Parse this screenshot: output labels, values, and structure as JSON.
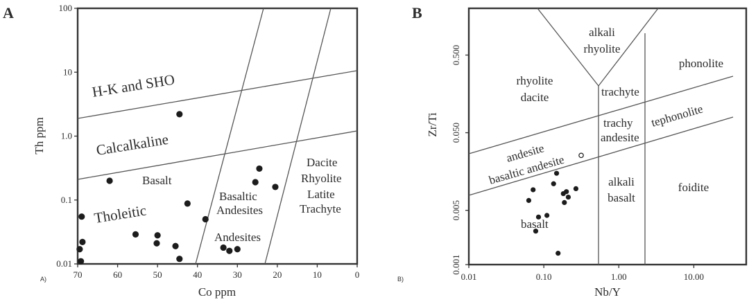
{
  "chart_data": [
    {
      "panel": "A",
      "sub_label": "A)",
      "type": "scatter",
      "xlabel": "Co ppm",
      "ylabel": "Th ppm",
      "x_reversed": true,
      "xlim": [
        70,
        0
      ],
      "ylim": [
        0.01,
        100
      ],
      "y_scale": "log",
      "x_ticks": [
        "70",
        "60",
        "50",
        "40",
        "30",
        "20",
        "10",
        "0"
      ],
      "y_ticks": [
        "0.01",
        "0.1",
        "1.0",
        "10",
        "100"
      ],
      "fields": [
        "H-K and SHO",
        "Calcalkaline",
        "Basalt",
        "Tholeitic",
        "Basaltic",
        "Andesites",
        "Andesites",
        "Dacite",
        "Rhyolite",
        "Latite",
        "Trachyte"
      ],
      "points": [
        {
          "x": 44.5,
          "y": 2.2
        },
        {
          "x": 62,
          "y": 0.2
        },
        {
          "x": 69,
          "y": 0.055
        },
        {
          "x": 68.8,
          "y": 0.022
        },
        {
          "x": 69.5,
          "y": 0.017
        },
        {
          "x": 69.2,
          "y": 0.011
        },
        {
          "x": 55.5,
          "y": 0.029
        },
        {
          "x": 50,
          "y": 0.028
        },
        {
          "x": 50.2,
          "y": 0.021
        },
        {
          "x": 45.5,
          "y": 0.019
        },
        {
          "x": 44.5,
          "y": 0.012
        },
        {
          "x": 42.5,
          "y": 0.088
        },
        {
          "x": 38,
          "y": 0.05
        },
        {
          "x": 33.5,
          "y": 0.018
        },
        {
          "x": 32,
          "y": 0.016
        },
        {
          "x": 30,
          "y": 0.017
        },
        {
          "x": 24.5,
          "y": 0.31
        },
        {
          "x": 25.5,
          "y": 0.19
        },
        {
          "x": 20.5,
          "y": 0.16
        }
      ]
    },
    {
      "panel": "B",
      "sub_label": "B)",
      "type": "scatter",
      "xlabel": "Nb/Y",
      "ylabel": "Zr/Ti",
      "x_scale": "log",
      "y_scale": "log",
      "xlim": [
        0.01,
        50
      ],
      "ylim": [
        0.001,
        2
      ],
      "x_ticks": [
        "0.01",
        "0.10",
        "1.00",
        "10.00"
      ],
      "y_ticks": [
        "0.001",
        "0.005",
        "0.050",
        "0.500"
      ],
      "fields": [
        "alkali",
        "rhyolite",
        "rhyolite",
        "dacite",
        "phonolite",
        "trachyte",
        "trachy",
        "andesite",
        "tephonolite",
        "andesite",
        "basaltic andesite",
        "alkali",
        "basalt",
        "foidite",
        "basalt"
      ],
      "points": [
        {
          "x": 0.148,
          "y": 0.015,
          "open": false
        },
        {
          "x": 0.072,
          "y": 0.0092,
          "open": false
        },
        {
          "x": 0.063,
          "y": 0.0067,
          "open": false
        },
        {
          "x": 0.2,
          "y": 0.0087,
          "open": false
        },
        {
          "x": 0.268,
          "y": 0.0095,
          "open": false
        },
        {
          "x": 0.212,
          "y": 0.0074,
          "open": false
        },
        {
          "x": 0.182,
          "y": 0.0082,
          "open": false
        },
        {
          "x": 0.188,
          "y": 0.0063,
          "open": false
        },
        {
          "x": 0.135,
          "y": 0.011,
          "open": false
        },
        {
          "x": 0.085,
          "y": 0.0041,
          "open": false
        },
        {
          "x": 0.11,
          "y": 0.0043,
          "open": false
        },
        {
          "x": 0.078,
          "y": 0.0027,
          "open": false
        },
        {
          "x": 0.155,
          "y": 0.0014,
          "open": false
        },
        {
          "x": 0.315,
          "y": 0.0255,
          "open": true
        }
      ]
    }
  ]
}
